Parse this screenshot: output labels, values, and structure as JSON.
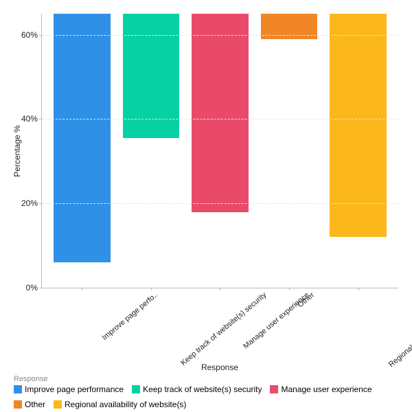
{
  "chart": {
    "type": "bar",
    "ylabel": "Percentage %",
    "xlabel": "Response",
    "legend_title": "Response",
    "ylim": [
      0,
      65
    ],
    "ytick_step": 20,
    "yticks": [
      0,
      20,
      40,
      60
    ],
    "ytick_labels": [
      "0%",
      "20%",
      "40%",
      "60%"
    ],
    "grid_color": "#e5e5e5",
    "axis_color": "#bbbbbb",
    "background_color": "#ffffff",
    "bar_width": 0.82,
    "label_fontsize": 12,
    "tick_fontsize": 11,
    "categories": [
      {
        "label": "Improve page perfo..",
        "full_label": "Improve page performance",
        "value": 59,
        "color": "#2e90e6"
      },
      {
        "label": "Keep track of website(s) security",
        "full_label": "Keep track of website(s) security",
        "value": 29.5,
        "color": "#06d1a3"
      },
      {
        "label": "Manage user experience",
        "full_label": "Manage user experience",
        "value": 47,
        "color": "#e94a69"
      },
      {
        "label": "Other",
        "full_label": "Other",
        "value": 6,
        "color": "#f08627"
      },
      {
        "label": "Regional availability of website(s)",
        "full_label": "Regional availability of website(s)",
        "value": 53,
        "color": "#fcb71b"
      }
    ]
  }
}
